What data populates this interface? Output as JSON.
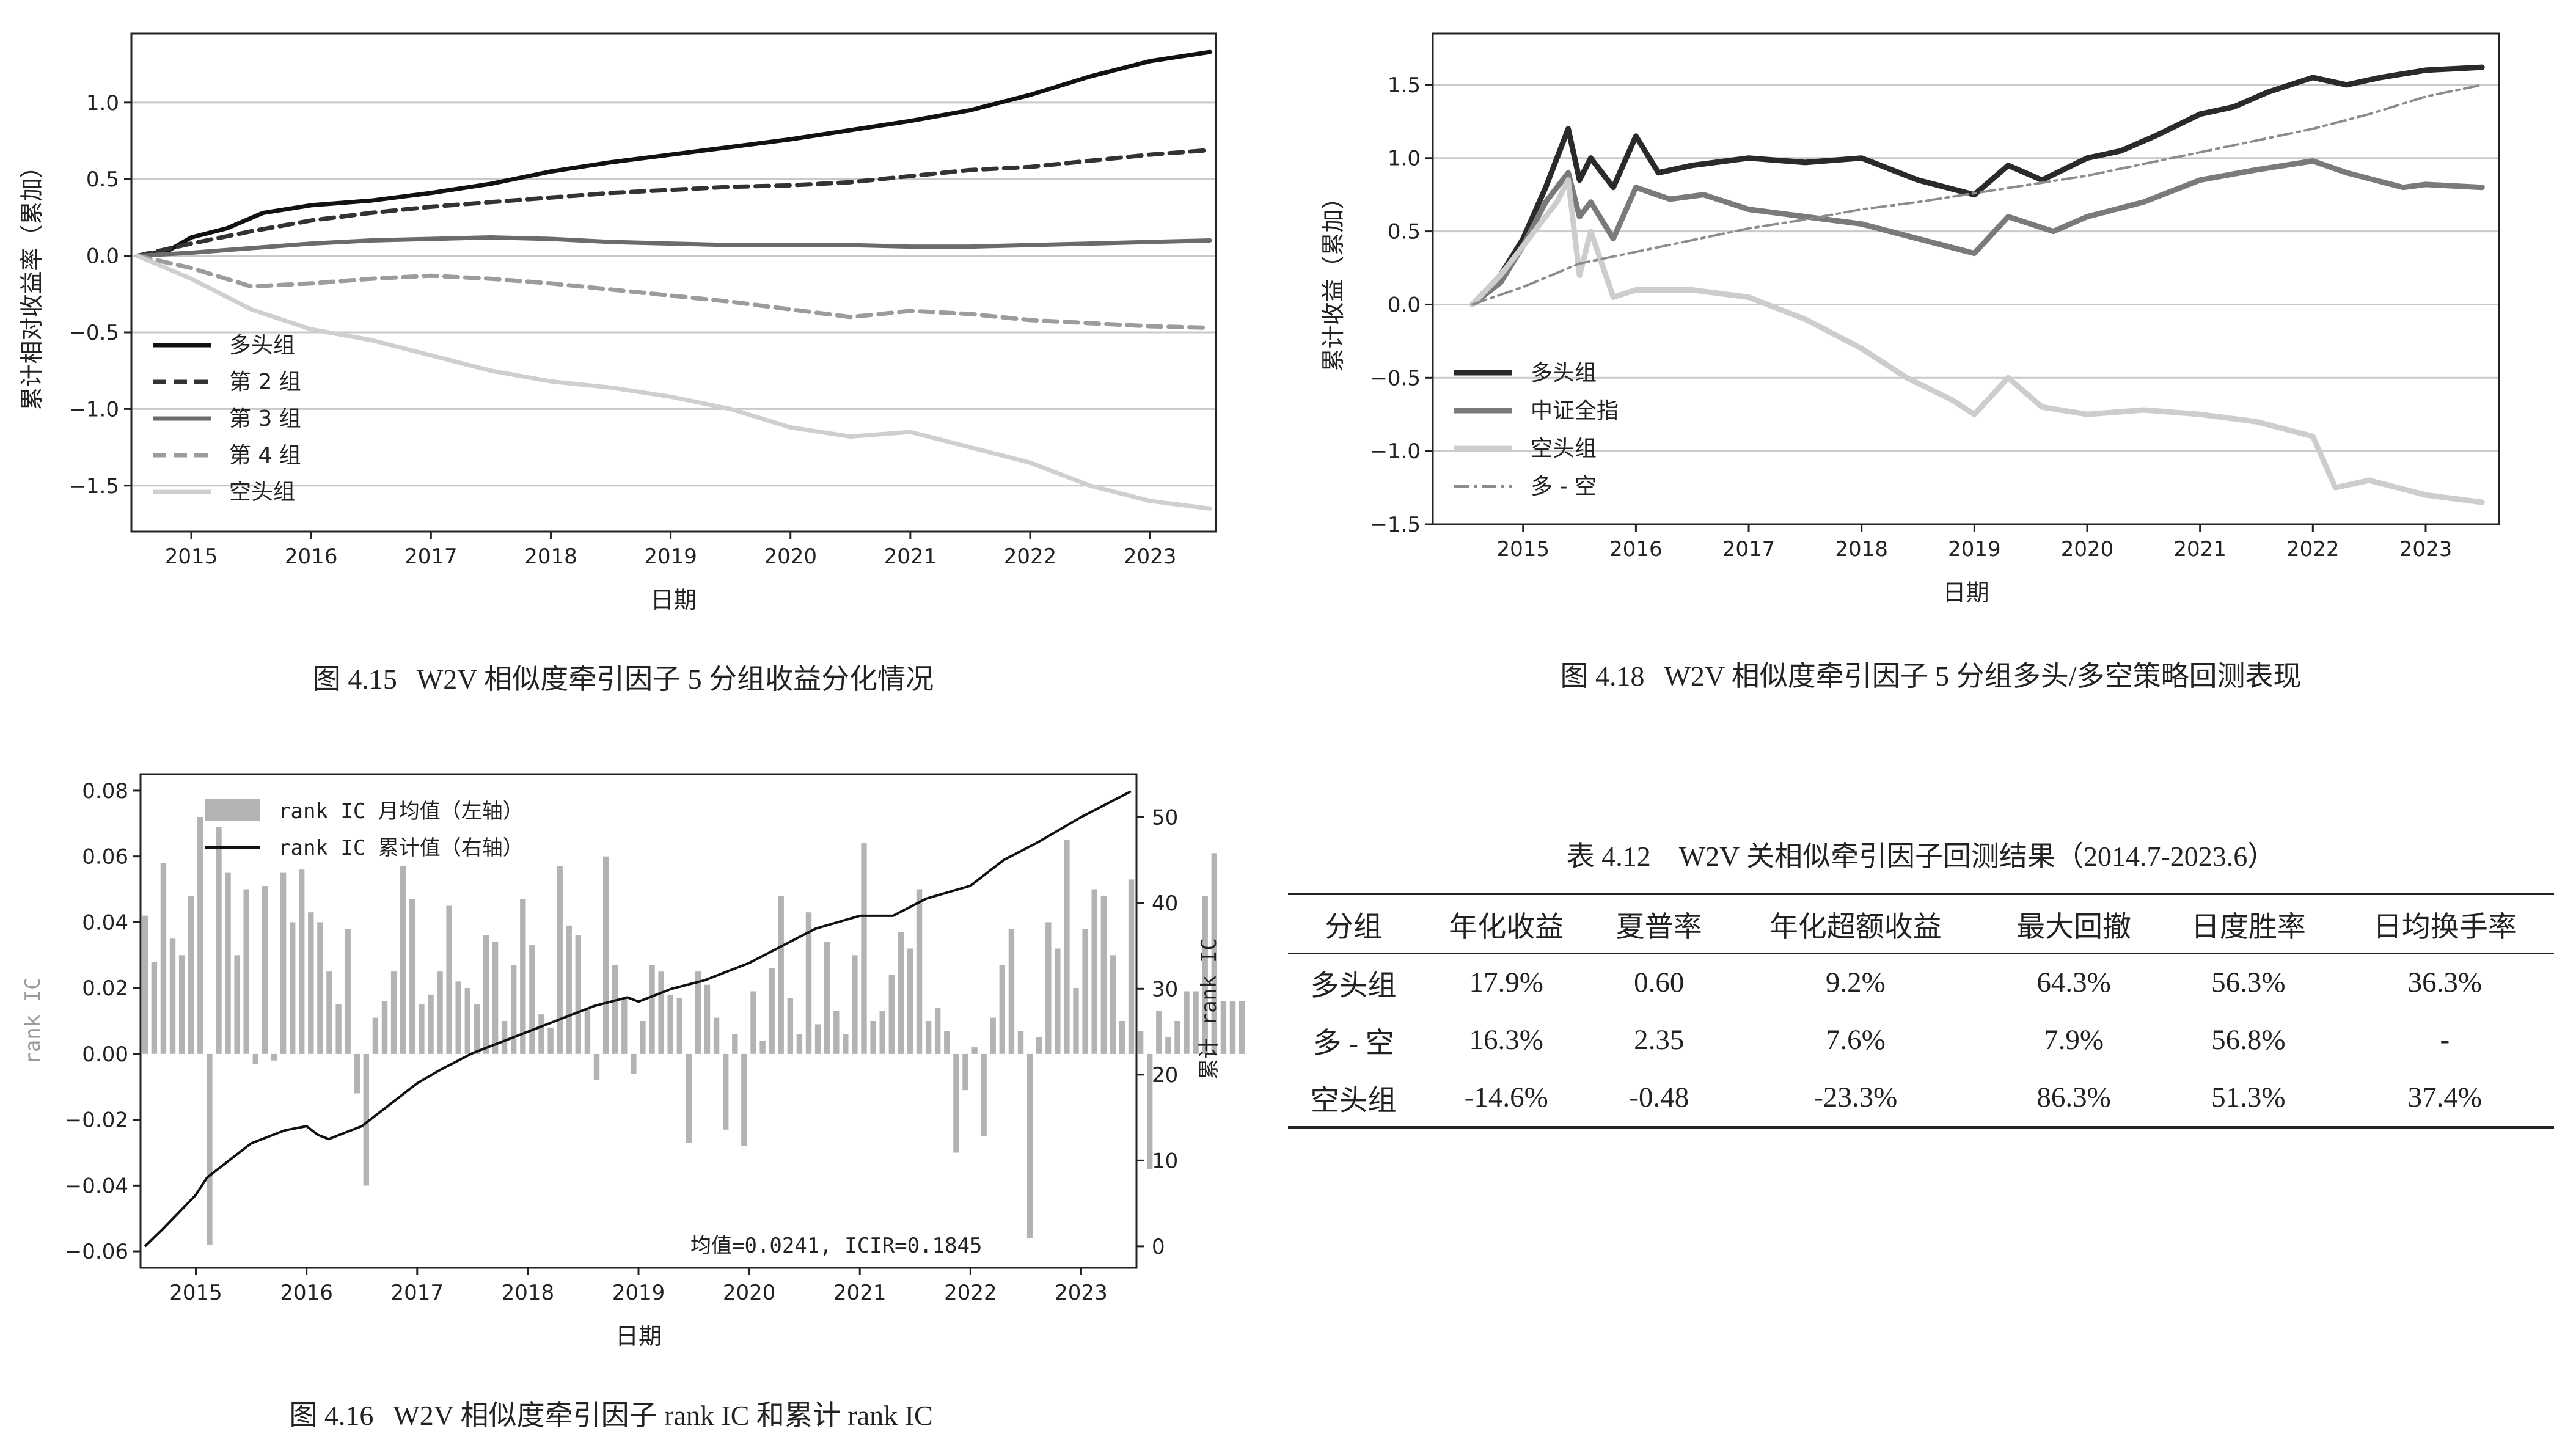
{
  "captions": {
    "fig415": {
      "num": "图 4.15",
      "text": "W2V 相似度牵引因子 5 分组收益分化情况"
    },
    "fig418": {
      "num": "图 4.18",
      "text": "W2V 相似度牵引因子 5 分组多头/多空策略回测表现"
    },
    "fig416": {
      "num": "图 4.16",
      "text": "W2V 相似度牵引因子 rank IC 和累计 rank IC"
    }
  },
  "chart_data": [
    {
      "id": "fig415",
      "type": "line",
      "title": "",
      "xlabel": "日期",
      "ylabel": "累计相对收益率（累加）",
      "xlim": [
        2014.5,
        2023.55
      ],
      "ylim": [
        -1.8,
        1.45
      ],
      "xticks": [
        2015,
        2016,
        2017,
        2018,
        2019,
        2020,
        2021,
        2022,
        2023
      ],
      "yticks": [
        -1.5,
        -1.0,
        -0.5,
        0.0,
        0.5,
        1.0
      ],
      "ytick_labels": [
        "−1.5",
        "−1.0",
        "−0.5",
        "0.0",
        "0.5",
        "1.0"
      ],
      "grid": "horizontal",
      "legend": "lower-left",
      "series": [
        {
          "name": "多头组",
          "color": "#111111",
          "dash": "",
          "width": 7,
          "x": [
            2014.55,
            2014.8,
            2015.0,
            2015.3,
            2015.6,
            2016.0,
            2016.5,
            2017.0,
            2017.5,
            2018.0,
            2018.5,
            2019.0,
            2019.5,
            2020.0,
            2020.5,
            2021.0,
            2021.5,
            2022.0,
            2022.5,
            2023.0,
            2023.5
          ],
          "y": [
            0.0,
            0.03,
            0.12,
            0.18,
            0.28,
            0.33,
            0.36,
            0.41,
            0.47,
            0.55,
            0.61,
            0.66,
            0.71,
            0.76,
            0.82,
            0.88,
            0.95,
            1.05,
            1.17,
            1.27,
            1.33
          ]
        },
        {
          "name": "第 2 组",
          "color": "#333333",
          "dash": "22,12",
          "width": 7,
          "x": [
            2014.55,
            2015.0,
            2015.5,
            2016.0,
            2016.5,
            2017.0,
            2017.5,
            2018.0,
            2018.5,
            2019.0,
            2019.5,
            2020.0,
            2020.5,
            2021.0,
            2021.5,
            2022.0,
            2022.5,
            2023.0,
            2023.5
          ],
          "y": [
            0.0,
            0.08,
            0.16,
            0.23,
            0.28,
            0.32,
            0.35,
            0.38,
            0.41,
            0.43,
            0.45,
            0.46,
            0.48,
            0.52,
            0.56,
            0.58,
            0.62,
            0.66,
            0.69
          ]
        },
        {
          "name": "第 3 组",
          "color": "#6b6b6b",
          "dash": "",
          "width": 7,
          "x": [
            2014.55,
            2015.0,
            2015.5,
            2016.0,
            2016.5,
            2017.0,
            2017.5,
            2018.0,
            2018.5,
            2019.0,
            2019.5,
            2020.0,
            2020.5,
            2021.0,
            2021.5,
            2022.0,
            2022.5,
            2023.0,
            2023.5
          ],
          "y": [
            0.0,
            0.02,
            0.05,
            0.08,
            0.1,
            0.11,
            0.12,
            0.11,
            0.09,
            0.08,
            0.07,
            0.07,
            0.07,
            0.06,
            0.06,
            0.07,
            0.08,
            0.09,
            0.1
          ]
        },
        {
          "name": "第 4 组",
          "color": "#9c9c9c",
          "dash": "22,12",
          "width": 7,
          "x": [
            2014.55,
            2015.0,
            2015.5,
            2016.0,
            2016.5,
            2017.0,
            2017.5,
            2018.0,
            2018.5,
            2019.0,
            2019.5,
            2020.0,
            2020.5,
            2021.0,
            2021.5,
            2022.0,
            2022.5,
            2023.0,
            2023.5
          ],
          "y": [
            0.0,
            -0.08,
            -0.2,
            -0.18,
            -0.15,
            -0.13,
            -0.15,
            -0.18,
            -0.22,
            -0.26,
            -0.3,
            -0.35,
            -0.4,
            -0.36,
            -0.38,
            -0.42,
            -0.44,
            -0.46,
            -0.47
          ]
        },
        {
          "name": "空头组",
          "color": "#cfcfcf",
          "dash": "",
          "width": 7,
          "x": [
            2014.55,
            2015.0,
            2015.5,
            2016.0,
            2016.5,
            2017.0,
            2017.5,
            2018.0,
            2018.5,
            2019.0,
            2019.5,
            2020.0,
            2020.5,
            2021.0,
            2021.5,
            2022.0,
            2022.5,
            2023.0,
            2023.5
          ],
          "y": [
            0.0,
            -0.15,
            -0.35,
            -0.48,
            -0.55,
            -0.65,
            -0.75,
            -0.82,
            -0.86,
            -0.92,
            -1.0,
            -1.12,
            -1.18,
            -1.15,
            -1.25,
            -1.35,
            -1.5,
            -1.6,
            -1.65
          ]
        }
      ]
    },
    {
      "id": "fig418",
      "type": "line",
      "title": "",
      "xlabel": "日期",
      "ylabel": "累计收益（累加）",
      "xlim": [
        2014.2,
        2023.65
      ],
      "ylim": [
        -1.5,
        1.85
      ],
      "xticks": [
        2015,
        2016,
        2017,
        2018,
        2019,
        2020,
        2021,
        2022,
        2023
      ],
      "yticks": [
        -1.5,
        -1.0,
        -0.5,
        0.0,
        0.5,
        1.0,
        1.5
      ],
      "ytick_labels": [
        "−1.5",
        "−1.0",
        "−0.5",
        "0.0",
        "0.5",
        "1.0",
        "1.5"
      ],
      "grid": "horizontal",
      "legend": "lower-left",
      "series": [
        {
          "name": "多头组",
          "color": "#2a2a2a",
          "dash": "",
          "width": 9,
          "x": [
            2014.55,
            2014.8,
            2015.0,
            2015.2,
            2015.4,
            2015.5,
            2015.6,
            2015.8,
            2016.0,
            2016.2,
            2016.5,
            2017.0,
            2017.5,
            2018.0,
            2018.5,
            2019.0,
            2019.3,
            2019.6,
            2020.0,
            2020.3,
            2020.6,
            2021.0,
            2021.3,
            2021.6,
            2022.0,
            2022.3,
            2022.6,
            2023.0,
            2023.5
          ],
          "y": [
            0.0,
            0.2,
            0.45,
            0.8,
            1.2,
            0.85,
            1.0,
            0.8,
            1.15,
            0.9,
            0.95,
            1.0,
            0.97,
            1.0,
            0.85,
            0.75,
            0.95,
            0.85,
            1.0,
            1.05,
            1.15,
            1.3,
            1.35,
            1.45,
            1.55,
            1.5,
            1.55,
            1.6,
            1.62
          ]
        },
        {
          "name": "中证全指",
          "color": "#7a7a7a",
          "dash": "",
          "width": 9,
          "x": [
            2014.55,
            2014.8,
            2015.0,
            2015.2,
            2015.4,
            2015.5,
            2015.6,
            2015.8,
            2016.0,
            2016.3,
            2016.6,
            2017.0,
            2017.5,
            2018.0,
            2018.5,
            2019.0,
            2019.3,
            2019.7,
            2020.0,
            2020.5,
            2021.0,
            2021.5,
            2022.0,
            2022.3,
            2022.8,
            2023.0,
            2023.5
          ],
          "y": [
            0.0,
            0.15,
            0.4,
            0.7,
            0.9,
            0.6,
            0.7,
            0.45,
            0.8,
            0.72,
            0.75,
            0.65,
            0.6,
            0.55,
            0.45,
            0.35,
            0.6,
            0.5,
            0.6,
            0.7,
            0.85,
            0.92,
            0.98,
            0.9,
            0.8,
            0.82,
            0.8
          ]
        },
        {
          "name": "空头组",
          "color": "#cdcdcd",
          "dash": "",
          "width": 9,
          "x": [
            2014.55,
            2014.8,
            2015.0,
            2015.3,
            2015.4,
            2015.5,
            2015.6,
            2015.8,
            2016.0,
            2016.5,
            2017.0,
            2017.5,
            2018.0,
            2018.4,
            2018.8,
            2019.0,
            2019.3,
            2019.6,
            2020.0,
            2020.5,
            2021.0,
            2021.5,
            2022.0,
            2022.2,
            2022.5,
            2023.0,
            2023.5
          ],
          "y": [
            0.0,
            0.2,
            0.4,
            0.7,
            0.85,
            0.2,
            0.5,
            0.05,
            0.1,
            0.1,
            0.05,
            -0.1,
            -0.3,
            -0.5,
            -0.65,
            -0.75,
            -0.5,
            -0.7,
            -0.75,
            -0.72,
            -0.75,
            -0.8,
            -0.9,
            -1.25,
            -1.2,
            -1.3,
            -1.35
          ]
        },
        {
          "name": "多 - 空",
          "color": "#8c8c8c",
          "dash": "24,8,5,8",
          "width": 4,
          "x": [
            2014.55,
            2015.0,
            2015.5,
            2016.0,
            2016.5,
            2017.0,
            2017.5,
            2018.0,
            2018.5,
            2019.0,
            2019.5,
            2020.0,
            2020.5,
            2021.0,
            2021.5,
            2022.0,
            2022.5,
            2023.0,
            2023.5
          ],
          "y": [
            0.0,
            0.12,
            0.28,
            0.36,
            0.44,
            0.52,
            0.58,
            0.65,
            0.7,
            0.76,
            0.82,
            0.88,
            0.96,
            1.04,
            1.12,
            1.2,
            1.3,
            1.42,
            1.5
          ]
        }
      ]
    },
    {
      "id": "fig416",
      "type": "bar",
      "title": "",
      "xlabel": "日期",
      "ylabel": "rank IC",
      "ylabel_right": "累计 rank IC",
      "xlim": [
        2014.5,
        2023.5
      ],
      "ylim": [
        -0.065,
        0.085
      ],
      "ylim_right": [
        -2.5,
        55
      ],
      "xticks": [
        2015,
        2016,
        2017,
        2018,
        2019,
        2020,
        2021,
        2022,
        2023
      ],
      "yticks": [
        -0.06,
        -0.04,
        -0.02,
        0.0,
        0.02,
        0.04,
        0.06,
        0.08
      ],
      "ytick_labels": [
        "−0.06",
        "−0.04",
        "−0.02",
        "0.00",
        "0.02",
        "0.04",
        "0.06",
        "0.08"
      ],
      "yticks_right": [
        0,
        10,
        20,
        30,
        40,
        50
      ],
      "grid": "off",
      "legend": "top-left",
      "annotation": "均值=0.0241, ICIR=0.1845",
      "bar_series": {
        "name": "rank IC 月均值（左轴）",
        "color": "#b3b3b3",
        "start": 2014.54,
        "step": 0.0833,
        "values": [
          0.042,
          0.028,
          0.058,
          0.035,
          0.03,
          0.048,
          0.072,
          -0.058,
          0.069,
          0.055,
          0.03,
          0.05,
          -0.003,
          0.051,
          -0.002,
          0.055,
          0.04,
          0.056,
          0.043,
          0.04,
          0.025,
          0.015,
          0.038,
          -0.012,
          -0.04,
          0.011,
          0.016,
          0.025,
          0.057,
          0.047,
          0.015,
          0.018,
          0.025,
          0.045,
          0.022,
          0.02,
          0.015,
          0.036,
          0.034,
          0.01,
          0.027,
          0.047,
          0.033,
          0.012,
          0.008,
          0.057,
          0.039,
          0.036,
          0.014,
          -0.008,
          0.06,
          0.027,
          0.017,
          -0.006,
          0.01,
          0.027,
          0.025,
          0.018,
          0.017,
          -0.027,
          0.025,
          0.021,
          0.011,
          -0.023,
          0.006,
          -0.028,
          0.019,
          0.004,
          0.026,
          0.048,
          0.017,
          0.006,
          0.043,
          0.009,
          0.034,
          0.013,
          0.006,
          0.03,
          0.064,
          0.01,
          0.013,
          0.024,
          0.037,
          0.032,
          0.05,
          0.01,
          0.014,
          0.007,
          -0.03,
          -0.011,
          0.002,
          -0.025,
          0.011,
          0.027,
          0.038,
          0.007,
          -0.056,
          0.005,
          0.04,
          0.032,
          0.065,
          0.02,
          0.038,
          0.05,
          0.048,
          0.03,
          0.01,
          0.053,
          0.007,
          -0.035,
          0.013,
          0.005,
          0.01,
          0.019,
          0.019,
          0.048,
          0.061,
          0.016,
          0.016,
          0.016
        ]
      },
      "line_series": {
        "name": "rank IC 累计值（右轴）",
        "color": "#111111",
        "axis": "right",
        "x": [
          2014.54,
          2014.7,
          2015.0,
          2015.1,
          2015.3,
          2015.5,
          2015.6,
          2015.8,
          2016.0,
          2016.1,
          2016.2,
          2016.5,
          2016.8,
          2017.0,
          2017.2,
          2017.5,
          2017.8,
          2018.0,
          2018.3,
          2018.6,
          2018.9,
          2019.0,
          2019.3,
          2019.6,
          2020.0,
          2020.3,
          2020.6,
          2021.0,
          2021.3,
          2021.6,
          2022.0,
          2022.3,
          2022.6,
          2023.0,
          2023.3,
          2023.45
        ],
        "y": [
          0,
          2,
          6,
          8,
          10,
          12,
          12.5,
          13.5,
          14,
          13,
          12.5,
          14,
          17,
          19,
          20.5,
          22.5,
          24,
          25,
          26.5,
          28,
          29,
          28.5,
          30,
          31,
          33,
          35,
          37,
          38.5,
          38.5,
          40.5,
          42,
          45,
          47,
          50,
          52,
          53
        ]
      }
    }
  ],
  "table": {
    "title": "表 4.12　W2V 关相似牵引因子回测结果（2014.7-2023.6）",
    "headers": [
      "分组",
      "年化收益",
      "夏普率",
      "年化超额收益",
      "最大回撤",
      "日度胜率",
      "日均换手率"
    ],
    "rows": [
      [
        "多头组",
        "17.9%",
        "0.60",
        "9.2%",
        "64.3%",
        "56.3%",
        "36.3%"
      ],
      [
        "多 - 空",
        "16.3%",
        "2.35",
        "7.6%",
        "7.9%",
        "56.8%",
        "-"
      ],
      [
        "空头组",
        "-14.6%",
        "-0.48",
        "-23.3%",
        "86.3%",
        "51.3%",
        "37.4%"
      ]
    ]
  }
}
